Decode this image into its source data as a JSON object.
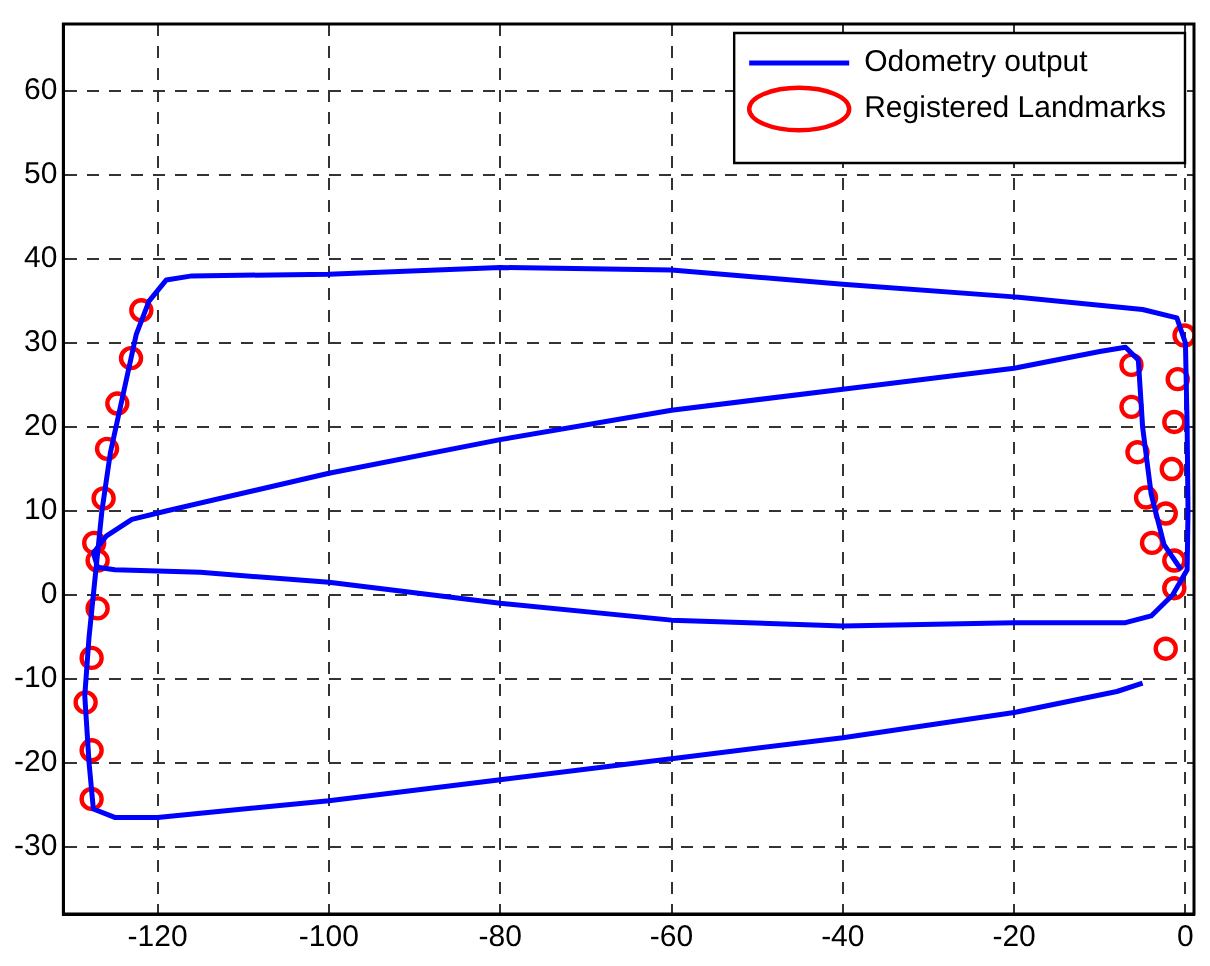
{
  "chart_data": {
    "type": "scatter",
    "xlim": [
      -131,
      1
    ],
    "ylim": [
      -38,
      68
    ],
    "xticks": [
      -120,
      -100,
      -80,
      -60,
      -40,
      -20,
      0
    ],
    "yticks": [
      -30,
      -20,
      -10,
      0,
      10,
      20,
      30,
      40,
      50,
      60
    ],
    "grid": true,
    "legend": "top right",
    "series": [
      {
        "name": "Odometry output",
        "type": "line",
        "color": "#0000ff",
        "marker": "none",
        "x": [
          -5,
          -8,
          -20,
          -40,
          -60,
          -80,
          -100,
          -115,
          -120,
          -125,
          -127.5,
          -128,
          -128.5,
          -128,
          -127.5,
          -127,
          -126.5,
          -125.5,
          -124,
          -122.5,
          -121,
          -119,
          -116,
          -100,
          -80,
          -60,
          -40,
          -20,
          -5,
          -1,
          0,
          0.2,
          0.3,
          0.2,
          -1.5,
          -4,
          -7,
          -20,
          -40,
          -60,
          -80,
          -100,
          -115,
          -125,
          -127,
          -127.5,
          -126,
          -123,
          -119,
          -100,
          -80,
          -60,
          -40,
          -20,
          -10,
          -7,
          -5.5,
          -5,
          -4,
          -2.5,
          -0.5
        ],
        "values": [
          -10.5,
          -11.5,
          -14,
          -17,
          -19.5,
          -22,
          -24.5,
          -26,
          -26.5,
          -26.5,
          -25.5,
          -20,
          -12,
          -5,
          0,
          5,
          10,
          17,
          24,
          31,
          35,
          37.5,
          38,
          38.2,
          39,
          38.7,
          37,
          35.5,
          34,
          33,
          30,
          20,
          10,
          3,
          0,
          -2.5,
          -3.3,
          -3.3,
          -3.7,
          -3,
          -1,
          1.5,
          2.7,
          3,
          3.3,
          5,
          7,
          9,
          10,
          14.5,
          18.5,
          22,
          24.5,
          27,
          29,
          29.5,
          28,
          20,
          12,
          6,
          3
        ]
      },
      {
        "name": "Registered Landmarks",
        "type": "scatter",
        "color": "#ff0000",
        "marker": "circle",
        "x": [
          -121.9,
          -123.1,
          -124.7,
          -125.9,
          -126.3,
          -127.4,
          -127,
          -127,
          -127.7,
          -128.4,
          -127.7,
          -127.7,
          -0.1,
          -6.3,
          -0.9,
          -6.3,
          -1.3,
          -5.6,
          -1.6,
          -4.6,
          -2.3,
          -3.9,
          -1.3,
          -1.3,
          -2.3
        ],
        "values": [
          33.9,
          28.2,
          22.8,
          17.4,
          11.5,
          6.2,
          4.1,
          -1.6,
          -7.5,
          -12.8,
          -18.5,
          -24.3,
          30.9,
          27.4,
          25.7,
          22.4,
          20.6,
          17,
          15,
          11.6,
          9.7,
          6.2,
          4.1,
          0.8,
          -6.4
        ]
      }
    ]
  }
}
